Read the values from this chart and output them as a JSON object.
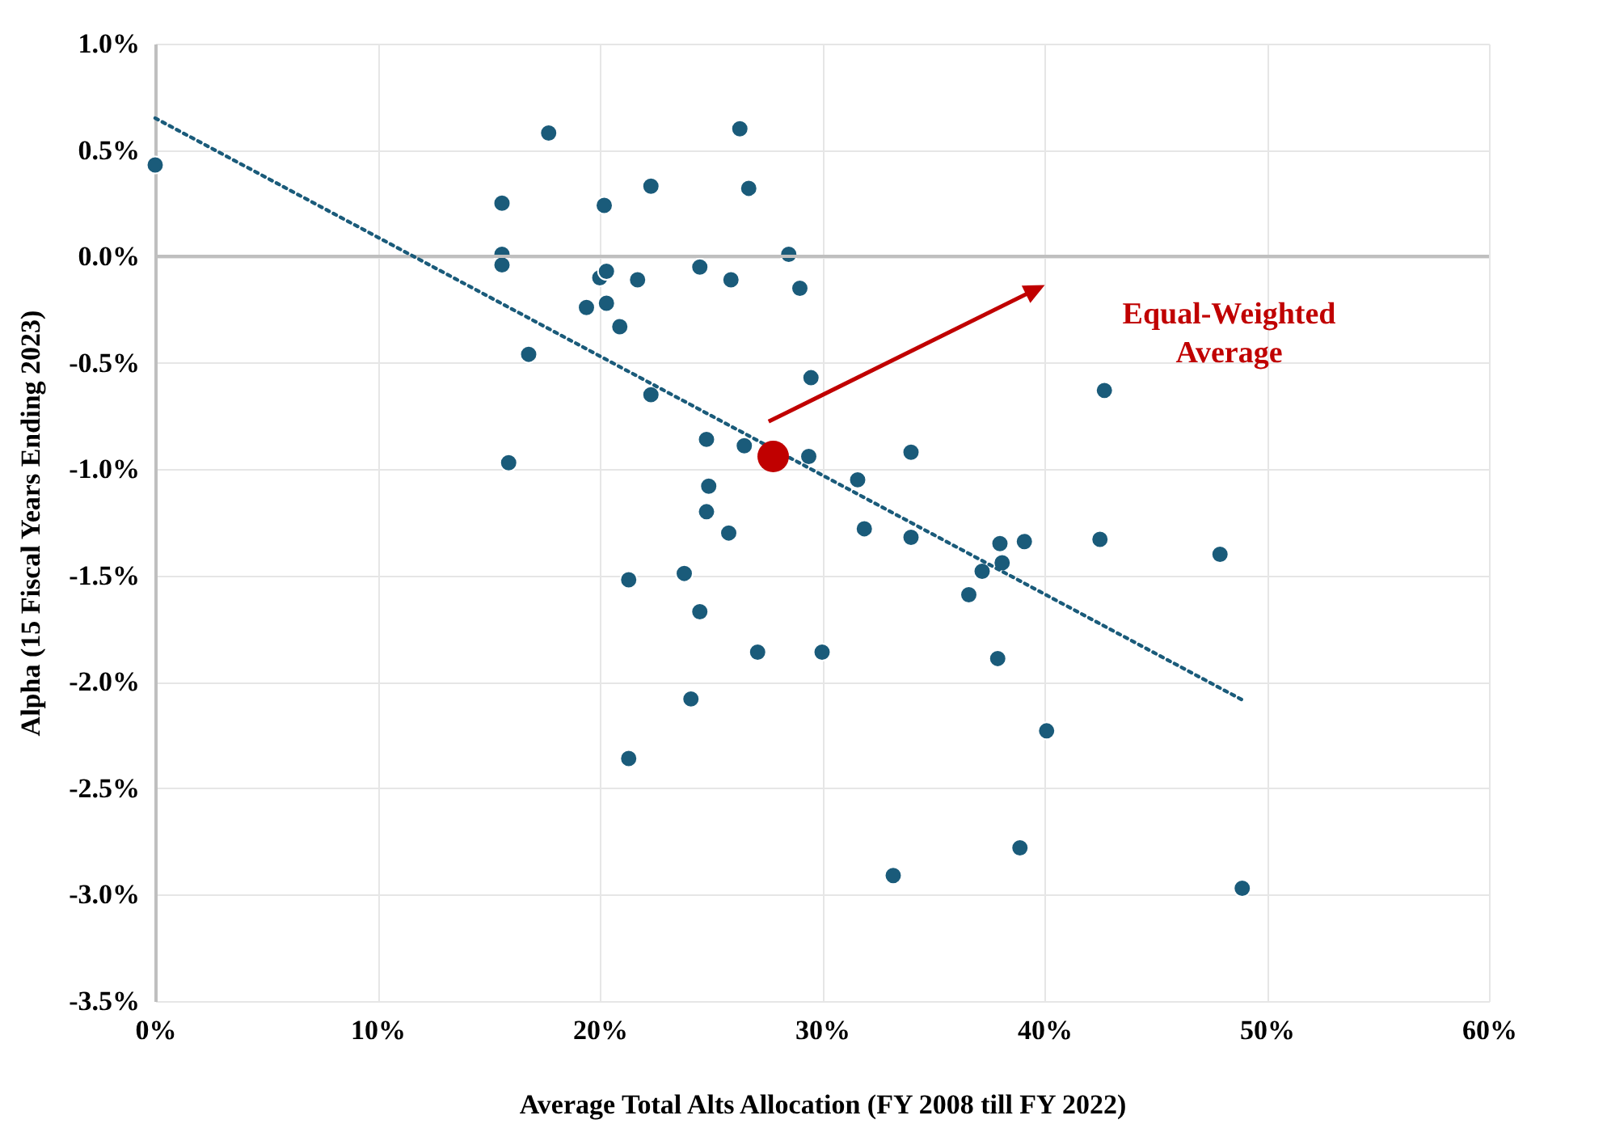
{
  "chart_data": {
    "type": "scatter",
    "xlabel": "Average Total Alts Allocation (FY 2008 till FY 2022)",
    "ylabel": "Alpha (15 Fiscal Years Ending 2023)",
    "series": [
      {
        "color": "#1a5b7a",
        "x": [
          0.0,
          15.6,
          15.6,
          15.6,
          17.7,
          22.3,
          20.2,
          26.3,
          26.7,
          28.5,
          29.0,
          24.5,
          25.9,
          20.0,
          20.3,
          21.7,
          19.4,
          20.3,
          20.9,
          16.8,
          29.5,
          22.3,
          15.9,
          24.8,
          26.5,
          29.4,
          34.0,
          31.6,
          24.9,
          24.8,
          25.8,
          31.9,
          34.0,
          38.0,
          39.1,
          42.5,
          47.9,
          38.1,
          37.2,
          36.6,
          21.3,
          23.8,
          24.5,
          27.1,
          30.0,
          37.9,
          24.1,
          40.1,
          21.3,
          38.9,
          33.2,
          48.9,
          42.7
        ],
        "values": [
          0.43,
          0.25,
          0.01,
          -0.04,
          0.58,
          0.33,
          0.24,
          0.6,
          0.32,
          0.01,
          -0.15,
          -0.05,
          -0.11,
          -0.1,
          -0.07,
          -0.11,
          -0.24,
          -0.22,
          -0.33,
          -0.46,
          -0.57,
          -0.65,
          -0.97,
          -0.86,
          -0.89,
          -0.94,
          -0.92,
          -1.05,
          -1.08,
          -1.2,
          -1.3,
          -1.28,
          -1.32,
          -1.35,
          -1.34,
          -1.33,
          -1.4,
          -1.44,
          -1.48,
          -1.59,
          -1.52,
          -1.49,
          -1.67,
          -1.86,
          -1.86,
          -1.89,
          -2.08,
          -2.23,
          -2.36,
          -2.78,
          -2.91,
          -2.97,
          -0.63
        ]
      },
      {
        "type": "line",
        "color": "#1a5b7a",
        "line_style": "dotted",
        "marker": "none",
        "x": [
          0,
          49
        ],
        "values": [
          0.65,
          -2.09
        ]
      },
      {
        "color": "#c00000",
        "x": [
          27.8
        ],
        "values": [
          -0.94
        ]
      }
    ],
    "annotations": [
      "Equal-Weighted Average"
    ],
    "xlim": [
      0,
      60
    ],
    "xticks": [
      {
        "value": 0,
        "label": "0%"
      },
      {
        "value": 10,
        "label": "10%"
      },
      {
        "value": 20,
        "label": "20%"
      },
      {
        "value": 30,
        "label": "30%"
      },
      {
        "value": 40,
        "label": "40%"
      },
      {
        "value": 50,
        "label": "50%"
      },
      {
        "value": 60,
        "label": "60%"
      }
    ],
    "ylim": [
      -3.5,
      1.0
    ],
    "yticks": [
      {
        "value": -3.5,
        "label": "-3.5%"
      },
      {
        "value": -3.0,
        "label": "-3.0%"
      },
      {
        "value": -2.5,
        "label": "-2.5%"
      },
      {
        "value": -2.0,
        "label": "-2.0%"
      },
      {
        "value": -1.5,
        "label": "-1.5%"
      },
      {
        "value": -1.0,
        "label": "-1.0%"
      },
      {
        "value": -0.5,
        "label": "-0.5%"
      },
      {
        "value": 0,
        "label": "0.0%"
      },
      {
        "value": 0.5,
        "label": "0.5%"
      },
      {
        "value": 1.0,
        "label": "1.0%"
      }
    ],
    "ref_lines": [
      {
        "axis": "y",
        "value": 0,
        "color": "#bfbfbf"
      }
    ],
    "grid": true,
    "marker": "circle"
  }
}
